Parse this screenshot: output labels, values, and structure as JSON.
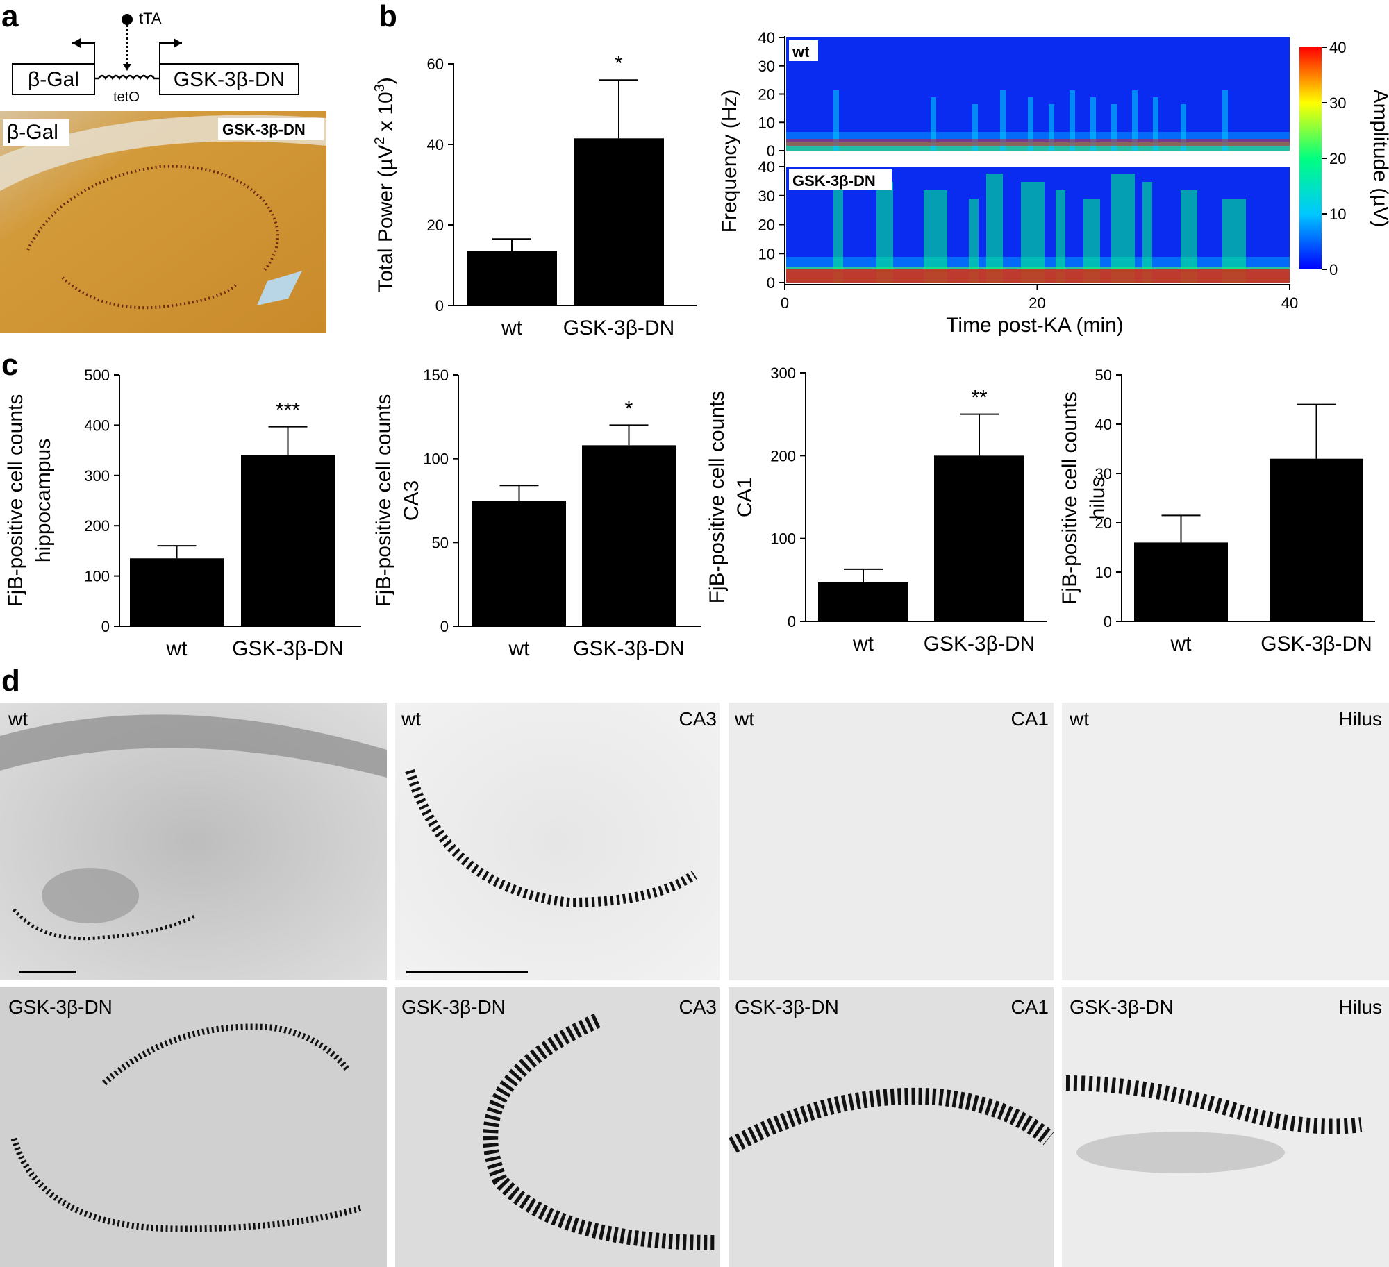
{
  "panel_labels": [
    "a",
    "b",
    "c",
    "d"
  ],
  "panel_a": {
    "promoter_label": "tTA",
    "operator_label": "tetO",
    "left_box": "β-Gal",
    "right_box": "GSK-3β-DN",
    "image_label_left": "β-Gal",
    "image_label_right": "GSK-3β-DN"
  },
  "spectrogram": {
    "top_label": "wt",
    "bottom_label": "GSK-3β-DN",
    "ylabel": "Frequency (Hz)",
    "xlabel": "Time post-KA (min)",
    "freq_ticks": [
      "40",
      "30",
      "20",
      "10",
      "0"
    ],
    "time_ticks": [
      "0",
      "20",
      "40"
    ],
    "colorbar_label": "Amplitude (µV)",
    "colorbar_ticks": [
      "40",
      "30",
      "20",
      "10",
      "0"
    ],
    "colormap": [
      "#0000ff",
      "#00c8ff",
      "#00ff80",
      "#ffff00",
      "#ff0000"
    ]
  },
  "chart_data": [
    {
      "id": "b-power",
      "type": "bar",
      "categories": [
        "wt",
        "GSK-3β-DN"
      ],
      "values": [
        13.5,
        41.5
      ],
      "errors": [
        3,
        14.5
      ],
      "significance": [
        "",
        "*"
      ],
      "ylabel": "Total Power (µV² x 10³)",
      "ylabel_parts": {
        "base": "Total Power (µV",
        "sq": "2",
        "mid": " x 10",
        "cube": "3",
        "end": ")"
      },
      "ylim": [
        0,
        60
      ],
      "yticks": [
        0,
        20,
        40,
        60
      ]
    },
    {
      "id": "c-hippocampus",
      "type": "bar",
      "categories": [
        "wt",
        "GSK-3β-DN"
      ],
      "values": [
        135,
        340
      ],
      "errors": [
        25,
        57
      ],
      "significance": [
        "",
        "***"
      ],
      "ylabel": "FjB-positive cell counts",
      "ylabel2": "hippocampus",
      "ylim": [
        0,
        500
      ],
      "yticks": [
        0,
        100,
        200,
        300,
        400,
        500
      ]
    },
    {
      "id": "c-ca3",
      "type": "bar",
      "categories": [
        "wt",
        "GSK-3β-DN"
      ],
      "values": [
        75,
        108
      ],
      "errors": [
        9,
        12
      ],
      "significance": [
        "",
        "*"
      ],
      "ylabel": "FjB-positive cell counts",
      "ylabel2": "CA3",
      "ylim": [
        0,
        150
      ],
      "yticks": [
        0,
        50,
        100,
        150
      ]
    },
    {
      "id": "c-ca1",
      "type": "bar",
      "categories": [
        "wt",
        "GSK-3β-DN"
      ],
      "values": [
        47,
        200
      ],
      "errors": [
        16,
        50
      ],
      "significance": [
        "",
        "**"
      ],
      "ylabel": "FjB-positive cell counts",
      "ylabel2": "CA1",
      "ylim": [
        0,
        300
      ],
      "yticks": [
        0,
        100,
        200,
        300
      ]
    },
    {
      "id": "c-hilus",
      "type": "bar",
      "categories": [
        "wt",
        "GSK-3β-DN"
      ],
      "values": [
        16,
        33
      ],
      "errors": [
        5.5,
        11
      ],
      "significance": [
        "",
        ""
      ],
      "ylabel": "FjB-positive cell counts",
      "ylabel2": "hilus",
      "ylim": [
        0,
        50
      ],
      "yticks": [
        0,
        10,
        20,
        30,
        40,
        50
      ]
    }
  ],
  "panel_d": {
    "top_row": [
      {
        "left": "wt",
        "right": ""
      },
      {
        "left": "wt",
        "right": "CA3"
      },
      {
        "left": "wt",
        "right": "CA1"
      },
      {
        "left": "wt",
        "right": "Hilus"
      }
    ],
    "bottom_row": [
      {
        "left": "GSK-3β-DN",
        "right": ""
      },
      {
        "left": "GSK-3β-DN",
        "right": "CA3"
      },
      {
        "left": "GSK-3β-DN",
        "right": "CA1"
      },
      {
        "left": "GSK-3β-DN",
        "right": "Hilus"
      }
    ]
  }
}
